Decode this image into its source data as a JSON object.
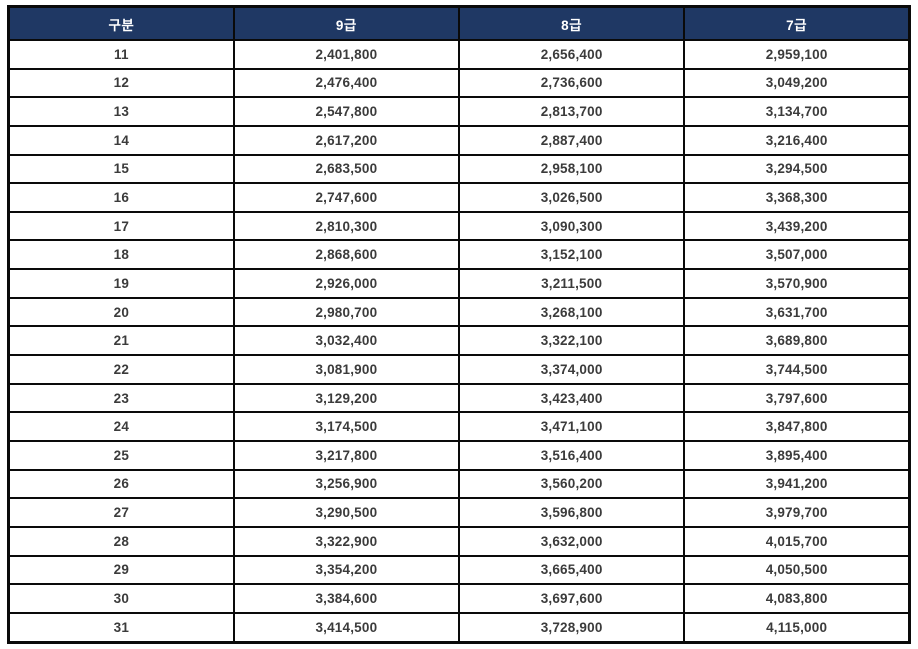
{
  "table": {
    "columns": [
      "구분",
      "9급",
      "8급",
      "7급"
    ],
    "rows": [
      {
        "grade": "11",
        "values": [
          "2,401,800",
          "2,656,400",
          "2,959,100"
        ]
      },
      {
        "grade": "12",
        "values": [
          "2,476,400",
          "2,736,600",
          "3,049,200"
        ]
      },
      {
        "grade": "13",
        "values": [
          "2,547,800",
          "2,813,700",
          "3,134,700"
        ]
      },
      {
        "grade": "14",
        "values": [
          "2,617,200",
          "2,887,400",
          "3,216,400"
        ]
      },
      {
        "grade": "15",
        "values": [
          "2,683,500",
          "2,958,100",
          "3,294,500"
        ]
      },
      {
        "grade": "16",
        "values": [
          "2,747,600",
          "3,026,500",
          "3,368,300"
        ]
      },
      {
        "grade": "17",
        "values": [
          "2,810,300",
          "3,090,300",
          "3,439,200"
        ]
      },
      {
        "grade": "18",
        "values": [
          "2,868,600",
          "3,152,100",
          "3,507,000"
        ]
      },
      {
        "grade": "19",
        "values": [
          "2,926,000",
          "3,211,500",
          "3,570,900"
        ]
      },
      {
        "grade": "20",
        "values": [
          "2,980,700",
          "3,268,100",
          "3,631,700"
        ]
      },
      {
        "grade": "21",
        "values": [
          "3,032,400",
          "3,322,100",
          "3,689,800"
        ]
      },
      {
        "grade": "22",
        "values": [
          "3,081,900",
          "3,374,000",
          "3,744,500"
        ]
      },
      {
        "grade": "23",
        "values": [
          "3,129,200",
          "3,423,400",
          "3,797,600"
        ]
      },
      {
        "grade": "24",
        "values": [
          "3,174,500",
          "3,471,100",
          "3,847,800"
        ]
      },
      {
        "grade": "25",
        "values": [
          "3,217,800",
          "3,516,400",
          "3,895,400"
        ]
      },
      {
        "grade": "26",
        "values": [
          "3,256,900",
          "3,560,200",
          "3,941,200"
        ]
      },
      {
        "grade": "27",
        "values": [
          "3,290,500",
          "3,596,800",
          "3,979,700"
        ]
      },
      {
        "grade": "28",
        "values": [
          "3,322,900",
          "3,632,000",
          "4,015,700"
        ]
      },
      {
        "grade": "29",
        "values": [
          "3,354,200",
          "3,665,400",
          "4,050,500"
        ]
      },
      {
        "grade": "30",
        "values": [
          "3,384,600",
          "3,697,600",
          "4,083,800"
        ]
      },
      {
        "grade": "31",
        "values": [
          "3,414,500",
          "3,728,900",
          "4,115,000"
        ]
      }
    ]
  },
  "colors": {
    "header_bg": "#1f3864",
    "header_text": "#ffffff",
    "body_text": "#3b3b3b",
    "border": "#0a0a0a",
    "background": "#ffffff"
  },
  "chart_data": {
    "type": "table",
    "title": "",
    "columns": [
      "구분",
      "9급",
      "8급",
      "7급"
    ],
    "categories": [
      "11",
      "12",
      "13",
      "14",
      "15",
      "16",
      "17",
      "18",
      "19",
      "20",
      "21",
      "22",
      "23",
      "24",
      "25",
      "26",
      "27",
      "28",
      "29",
      "30",
      "31"
    ],
    "series": [
      {
        "name": "9급",
        "values": [
          2401800,
          2476400,
          2547800,
          2617200,
          2683500,
          2747600,
          2810300,
          2868600,
          2926000,
          2980700,
          3032400,
          3081900,
          3129200,
          3174500,
          3217800,
          3256900,
          3290500,
          3322900,
          3354200,
          3384600,
          3414500
        ]
      },
      {
        "name": "8급",
        "values": [
          2656400,
          2736600,
          2813700,
          2887400,
          2958100,
          3026500,
          3090300,
          3152100,
          3211500,
          3268100,
          3322100,
          3374000,
          3423400,
          3471100,
          3516400,
          3560200,
          3596800,
          3632000,
          3665400,
          3697600,
          3728900
        ]
      },
      {
        "name": "7급",
        "values": [
          2959100,
          3049200,
          3134700,
          3216400,
          3294500,
          3368300,
          3439200,
          3507000,
          3570900,
          3631700,
          3689800,
          3744500,
          3797600,
          3847800,
          3895400,
          3941200,
          3979700,
          4015700,
          4050500,
          4083800,
          4115000
        ]
      }
    ]
  }
}
